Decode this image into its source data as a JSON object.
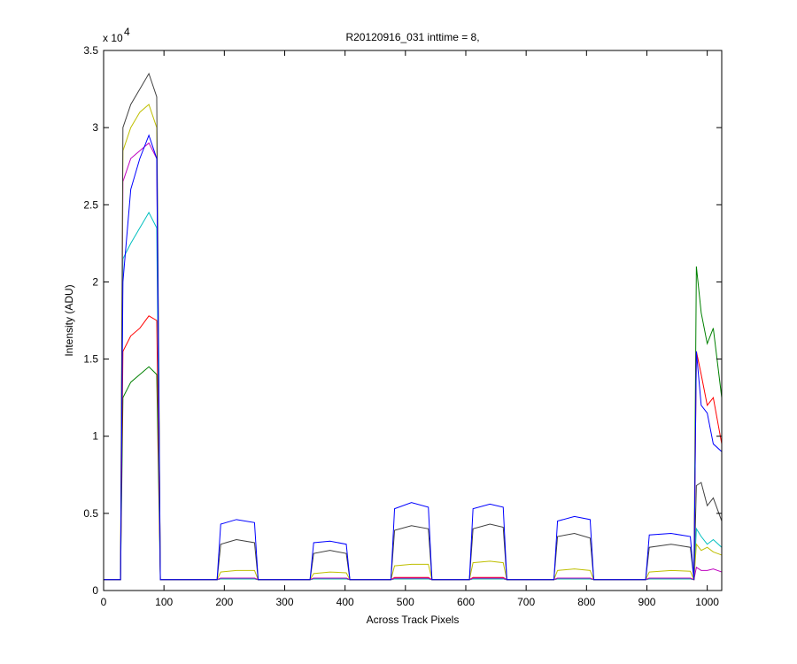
{
  "chart_data": {
    "type": "line",
    "title": "R20120916_031 inttime = 8,",
    "x_label": "Across Track Pixels",
    "y_label": "Intensity (ADU)",
    "y_exponent_base": "x 10",
    "y_exponent": "4",
    "xlim": [
      0,
      1024
    ],
    "xticks": [
      0,
      100,
      200,
      300,
      400,
      500,
      600,
      700,
      800,
      900,
      1000
    ],
    "ylim": [
      0,
      35000
    ],
    "yticks": [
      0,
      {
        "value": 5000,
        "label": "0.5"
      },
      {
        "value": 10000,
        "label": "1"
      },
      {
        "value": 15000,
        "label": "1.5"
      },
      {
        "value": 20000,
        "label": "2"
      },
      {
        "value": 25000,
        "label": "2.5"
      },
      {
        "value": 30000,
        "label": "3"
      },
      {
        "value": 35000,
        "label": "3.5"
      }
    ],
    "x": [
      0,
      28,
      32,
      45,
      60,
      75,
      88,
      94,
      100,
      188,
      194,
      220,
      250,
      256,
      342,
      348,
      375,
      402,
      408,
      476,
      482,
      510,
      538,
      544,
      606,
      612,
      640,
      662,
      668,
      746,
      752,
      780,
      806,
      812,
      898,
      904,
      940,
      972,
      978,
      982,
      990,
      1000,
      1010,
      1024
    ],
    "series": [
      {
        "color": "#008000",
        "values": [
          700,
          700,
          12500,
          13500,
          14000,
          14500,
          14000,
          700,
          700,
          700,
          750,
          750,
          750,
          700,
          700,
          750,
          750,
          750,
          700,
          700,
          750,
          750,
          750,
          700,
          700,
          750,
          750,
          750,
          700,
          700,
          750,
          750,
          750,
          700,
          700,
          750,
          750,
          750,
          700,
          21000,
          18000,
          16000,
          17000,
          12500
        ]
      },
      {
        "color": "#ff0000",
        "values": [
          700,
          700,
          15500,
          16500,
          17000,
          17800,
          17500,
          700,
          700,
          700,
          800,
          800,
          800,
          700,
          700,
          800,
          800,
          800,
          700,
          700,
          850,
          850,
          850,
          700,
          700,
          850,
          850,
          850,
          700,
          700,
          800,
          800,
          800,
          700,
          700,
          800,
          800,
          800,
          700,
          15500,
          14000,
          12000,
          12500,
          9500
        ]
      },
      {
        "color": "#00bfbf",
        "values": [
          700,
          700,
          21500,
          22500,
          23500,
          24500,
          23500,
          700,
          700,
          700,
          750,
          750,
          750,
          700,
          700,
          750,
          750,
          750,
          700,
          700,
          750,
          750,
          750,
          700,
          700,
          750,
          750,
          750,
          700,
          700,
          750,
          750,
          750,
          700,
          700,
          750,
          750,
          750,
          700,
          4000,
          3500,
          3000,
          3300,
          2800
        ]
      },
      {
        "color": "#bf00bf",
        "values": [
          700,
          700,
          26500,
          28000,
          28500,
          29000,
          28000,
          700,
          700,
          700,
          800,
          800,
          800,
          700,
          700,
          800,
          800,
          800,
          700,
          700,
          800,
          800,
          800,
          700,
          700,
          800,
          800,
          800,
          700,
          700,
          800,
          800,
          800,
          700,
          700,
          800,
          800,
          800,
          700,
          1500,
          1300,
          1300,
          1400,
          1200
        ]
      },
      {
        "color": "#bfbf00",
        "values": [
          700,
          700,
          28500,
          30000,
          31000,
          31500,
          30000,
          700,
          700,
          700,
          1200,
          1300,
          1300,
          700,
          700,
          1100,
          1200,
          1150,
          700,
          700,
          1600,
          1700,
          1700,
          700,
          700,
          1800,
          1900,
          1800,
          700,
          700,
          1300,
          1400,
          1300,
          700,
          700,
          1200,
          1300,
          1250,
          700,
          3000,
          2600,
          2800,
          2500,
          2300
        ]
      },
      {
        "color": "#404040",
        "values": [
          700,
          700,
          30000,
          31500,
          32500,
          33500,
          32000,
          700,
          700,
          700,
          3000,
          3300,
          3100,
          700,
          700,
          2400,
          2600,
          2400,
          700,
          700,
          3900,
          4200,
          4000,
          700,
          700,
          4000,
          4300,
          4100,
          700,
          700,
          3500,
          3700,
          3400,
          700,
          700,
          2800,
          3000,
          2800,
          700,
          6800,
          7000,
          5500,
          6000,
          4500
        ]
      },
      {
        "color": "#0000ff",
        "values": [
          700,
          700,
          20000,
          26000,
          28000,
          29500,
          28000,
          700,
          700,
          700,
          4300,
          4600,
          4400,
          700,
          700,
          3100,
          3200,
          3000,
          700,
          700,
          5300,
          5700,
          5400,
          700,
          700,
          5300,
          5600,
          5400,
          700,
          700,
          4500,
          4800,
          4600,
          700,
          700,
          3600,
          3700,
          3500,
          700,
          15500,
          12000,
          11500,
          9500,
          9000
        ]
      }
    ]
  }
}
